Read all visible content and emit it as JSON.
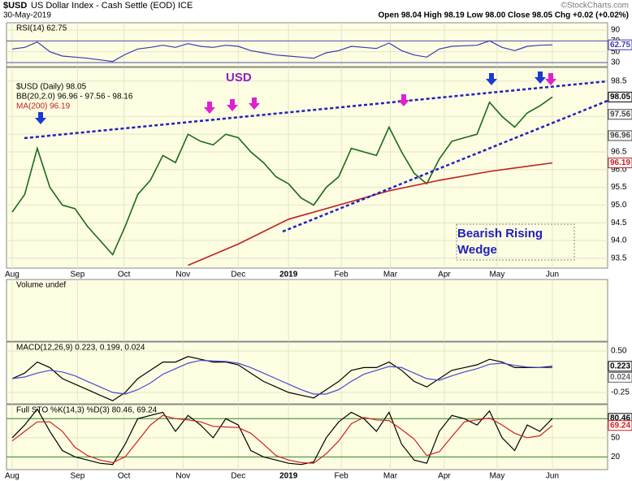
{
  "header": {
    "symbol": "$USD",
    "name": "US Dollar Index - Cash Settle (EOD) ICE",
    "date": "30-May-2019",
    "source": "©StockCharts.com",
    "quote": "Open 98.04 High 98.19 Low 98.00 Close 98.05 Chg +0.02 (+0.02%)"
  },
  "x_axis": {
    "xlim": [
      -0.45,
      47.4
    ],
    "xticks": [
      {
        "value": 0,
        "label": "Aug"
      },
      {
        "value": 5.2,
        "label": "Sep"
      },
      {
        "value": 8.9,
        "label": "Oct"
      },
      {
        "value": 13.6,
        "label": "Nov"
      },
      {
        "value": 18.0,
        "label": "Dec"
      },
      {
        "value": 22.0,
        "label": "2019"
      },
      {
        "value": 26.2,
        "label": "Feb"
      },
      {
        "value": 30.1,
        "label": "Mar"
      },
      {
        "value": 34.4,
        "label": "Apr"
      },
      {
        "value": 38.6,
        "label": "May"
      },
      {
        "value": 43.0,
        "label": "Jun"
      }
    ]
  },
  "chart_data": [
    {
      "type": "line",
      "title": "RSI(14) 62.75",
      "ylim": [
        22.5,
        103.5
      ],
      "yticks": [
        30,
        50,
        70,
        90
      ],
      "bands": [
        30,
        70
      ],
      "series": [
        {
          "color": "#3a3ab0",
          "values": [
            55,
            58,
            68,
            50,
            42,
            40,
            38,
            35,
            32,
            45,
            55,
            58,
            62,
            58,
            65,
            60,
            58,
            62,
            60,
            52,
            48,
            44,
            42,
            40,
            38,
            48,
            52,
            60,
            58,
            56,
            66,
            52,
            44,
            40,
            55,
            60,
            61,
            62,
            70,
            58,
            52,
            60,
            62,
            62.75
          ]
        }
      ],
      "right_labels": [
        {
          "value": 62.75,
          "color": "#3a3ab0"
        }
      ]
    },
    {
      "type": "line",
      "legend": [
        "$USD (Daily) 98.05",
        "BB(20,2.0) 96.96 - 97.56 - 98.16",
        "MA(200) 96.19"
      ],
      "ylim": [
        93.22,
        98.885
      ],
      "yticks": [
        {
          "value": 93.5,
          "label": "93.5"
        },
        {
          "value": 94.0,
          "label": "94.0"
        },
        {
          "value": 94.5,
          "label": "94.5"
        },
        {
          "value": 95.0,
          "label": "95.0"
        },
        {
          "value": 95.5,
          "label": "95.5"
        },
        {
          "value": 96.0,
          "label": "96.0"
        },
        {
          "value": 96.5,
          "label": "96.5"
        },
        {
          "value": 97.0,
          "label": "97.0"
        },
        {
          "value": 97.5,
          "label": "97.5"
        },
        {
          "value": 98.5,
          "label": "98.5"
        }
      ],
      "series": [
        {
          "name": "$USD (Daily) 98.05",
          "color": "#1a6b1a",
          "values": [
            94.8,
            95.3,
            96.6,
            95.5,
            95.0,
            94.9,
            94.4,
            94.0,
            93.6,
            94.4,
            95.3,
            95.7,
            96.4,
            96.2,
            97.0,
            96.8,
            96.7,
            97.0,
            96.9,
            96.5,
            96.2,
            95.8,
            95.6,
            95.2,
            95.0,
            95.5,
            95.8,
            96.6,
            96.5,
            96.4,
            97.2,
            96.5,
            95.9,
            95.6,
            96.3,
            96.8,
            96.9,
            97.0,
            97.9,
            97.5,
            97.2,
            97.6,
            97.8,
            98.05
          ]
        },
        {
          "name": "MA(200) 96.19",
          "color": "#c02020",
          "x": [
            14,
            18,
            22,
            26,
            30,
            34,
            38,
            43
          ],
          "values": [
            93.3,
            93.9,
            94.6,
            95.0,
            95.4,
            95.7,
            95.95,
            96.19
          ]
        }
      ],
      "right_labels": [
        {
          "value": 98.05,
          "color": "#000"
        },
        {
          "value": 97.56,
          "color": "#444"
        },
        {
          "value": 96.96,
          "color": "#444"
        },
        {
          "value": 96.19,
          "color": "#c02020"
        }
      ],
      "annotations": {
        "usd": "USD",
        "wedge": [
          "Bearish Rising",
          "Wedge"
        ]
      }
    },
    {
      "type": "empty",
      "title": "Volume undef"
    },
    {
      "type": "line",
      "title": "MACD(12,26,9) 0.223, 0.199, 0.024",
      "ylim": [
        -0.456,
        0.662
      ],
      "yticks": [
        {
          "value": 0.5,
          "label": "0.50"
        },
        -0.25
      ],
      "series": [
        {
          "color": "#000",
          "values": [
            0.0,
            0.1,
            0.3,
            0.2,
            0.0,
            -0.1,
            -0.2,
            -0.3,
            -0.4,
            -0.25,
            0.0,
            0.15,
            0.3,
            0.3,
            0.4,
            0.35,
            0.3,
            0.3,
            0.25,
            0.1,
            -0.05,
            -0.15,
            -0.25,
            -0.3,
            -0.35,
            -0.2,
            -0.05,
            0.15,
            0.2,
            0.2,
            0.3,
            0.15,
            -0.05,
            -0.15,
            0.0,
            0.15,
            0.2,
            0.25,
            0.35,
            0.3,
            0.2,
            0.2,
            0.2,
            0.223
          ]
        },
        {
          "color": "#4a4ad0",
          "values": [
            0.0,
            0.03,
            0.1,
            0.15,
            0.12,
            0.05,
            -0.05,
            -0.15,
            -0.25,
            -0.28,
            -0.2,
            -0.08,
            0.08,
            0.18,
            0.28,
            0.33,
            0.32,
            0.31,
            0.28,
            0.2,
            0.1,
            0.0,
            -0.1,
            -0.2,
            -0.28,
            -0.28,
            -0.2,
            -0.05,
            0.08,
            0.15,
            0.22,
            0.2,
            0.1,
            0.0,
            -0.03,
            0.05,
            0.12,
            0.18,
            0.26,
            0.28,
            0.24,
            0.21,
            0.2,
            0.199
          ]
        }
      ],
      "right_labels": [
        {
          "value": 0.223,
          "color": "#000"
        },
        {
          "value": 0.024,
          "color": "#666"
        }
      ]
    },
    {
      "type": "line",
      "title": "Full STO %K(14,3) %D(3) 80.46, 69.24",
      "ylim": [
        0,
        102
      ],
      "yticks": [
        20,
        50,
        80
      ],
      "bands": [
        20,
        80
      ],
      "series": [
        {
          "color": "#000",
          "values": [
            50,
            70,
            95,
            60,
            30,
            20,
            15,
            10,
            8,
            40,
            80,
            85,
            90,
            60,
            85,
            70,
            50,
            80,
            70,
            30,
            20,
            15,
            10,
            8,
            12,
            50,
            75,
            90,
            80,
            60,
            90,
            40,
            15,
            10,
            60,
            85,
            80,
            70,
            92,
            50,
            30,
            70,
            60,
            80.46
          ]
        },
        {
          "color": "#d02020",
          "values": [
            45,
            60,
            75,
            75,
            60,
            35,
            22,
            15,
            11,
            20,
            45,
            70,
            85,
            80,
            78,
            75,
            68,
            67,
            66,
            57,
            40,
            22,
            15,
            11,
            10,
            25,
            45,
            72,
            82,
            78,
            77,
            63,
            48,
            22,
            28,
            52,
            75,
            78,
            81,
            70,
            57,
            50,
            53,
            69.24
          ]
        }
      ],
      "right_labels": [
        {
          "value": 80.46,
          "color": "#000"
        },
        {
          "value": 69.24,
          "color": "#d02020"
        }
      ]
    }
  ]
}
